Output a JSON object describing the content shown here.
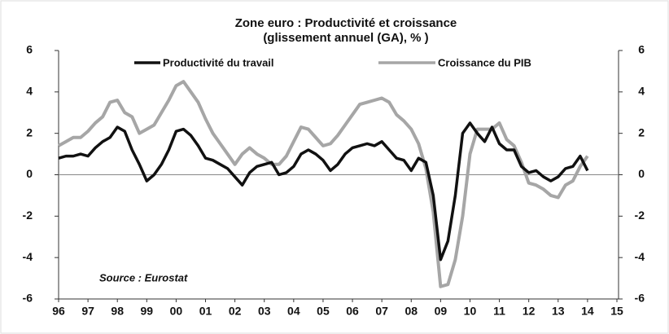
{
  "chart_data": {
    "type": "line",
    "title": "Zone euro : Productivité et croissance",
    "subtitle": "(glissement annuel (GA), % )",
    "annotation": "Source : Eurostat",
    "x": [
      1996,
      1996.25,
      1996.5,
      1996.75,
      1997,
      1997.25,
      1997.5,
      1997.75,
      1998,
      1998.25,
      1998.5,
      1998.75,
      1999,
      1999.25,
      1999.5,
      1999.75,
      2000,
      2000.25,
      2000.5,
      2000.75,
      2001,
      2001.25,
      2001.5,
      2001.75,
      2002,
      2002.25,
      2002.5,
      2002.75,
      2003,
      2003.25,
      2003.5,
      2003.75,
      2004,
      2004.25,
      2004.5,
      2004.75,
      2005,
      2005.25,
      2005.5,
      2005.75,
      2006,
      2006.25,
      2006.5,
      2006.75,
      2007,
      2007.25,
      2007.5,
      2007.75,
      2008,
      2008.25,
      2008.5,
      2008.75,
      2009,
      2009.25,
      2009.5,
      2009.75,
      2010,
      2010.25,
      2010.5,
      2010.75,
      2011,
      2011.25,
      2011.5,
      2011.75,
      2012,
      2012.25,
      2012.5,
      2012.75,
      2013,
      2013.25,
      2013.5,
      2013.75,
      2014
    ],
    "series": [
      {
        "name": "Productivité du travail",
        "color": "#111111",
        "values": [
          0.8,
          0.9,
          0.9,
          1.0,
          0.9,
          1.3,
          1.6,
          1.8,
          2.3,
          2.1,
          1.2,
          0.5,
          -0.3,
          0.0,
          0.5,
          1.2,
          2.1,
          2.2,
          1.9,
          1.4,
          0.8,
          0.7,
          0.5,
          0.3,
          -0.1,
          -0.5,
          0.1,
          0.4,
          0.5,
          0.6,
          0.0,
          0.1,
          0.4,
          1.0,
          1.2,
          1.0,
          0.7,
          0.2,
          0.5,
          1.0,
          1.3,
          1.4,
          1.5,
          1.4,
          1.6,
          1.2,
          0.8,
          0.7,
          0.2,
          0.8,
          0.6,
          -1.0,
          -4.1,
          -3.2,
          -1.0,
          2.0,
          2.5,
          2.0,
          1.6,
          2.3,
          1.5,
          1.2,
          1.2,
          0.4,
          0.1,
          0.2,
          -0.1,
          -0.3,
          -0.1,
          0.3,
          0.4,
          0.9,
          0.2
        ]
      },
      {
        "name": "Croissance du PIB",
        "color": "#a6a6a6",
        "values": [
          1.4,
          1.6,
          1.8,
          1.8,
          2.1,
          2.5,
          2.8,
          3.5,
          3.6,
          3.0,
          2.8,
          2.0,
          2.2,
          2.4,
          3.0,
          3.6,
          4.3,
          4.5,
          4.0,
          3.5,
          2.7,
          2.0,
          1.5,
          1.0,
          0.5,
          1.0,
          1.3,
          1.0,
          0.8,
          0.5,
          0.5,
          0.9,
          1.6,
          2.3,
          2.2,
          1.8,
          1.4,
          1.5,
          1.9,
          2.4,
          2.9,
          3.4,
          3.5,
          3.6,
          3.7,
          3.5,
          2.9,
          2.6,
          2.2,
          1.5,
          0.3,
          -1.8,
          -5.4,
          -5.3,
          -4.1,
          -2.0,
          1.0,
          2.2,
          2.2,
          2.2,
          2.5,
          1.7,
          1.4,
          0.6,
          -0.4,
          -0.5,
          -0.7,
          -1.0,
          -1.1,
          -0.5,
          -0.3,
          0.4,
          0.9
        ],
        "axis": "y2"
      }
    ],
    "xlim": [
      1996,
      2015
    ],
    "xticks": [
      {
        "value": 1996,
        "label": "96"
      },
      {
        "value": 1997,
        "label": "97"
      },
      {
        "value": 1998,
        "label": "98"
      },
      {
        "value": 1999,
        "label": "99"
      },
      {
        "value": 2000,
        "label": "00"
      },
      {
        "value": 2001,
        "label": "01"
      },
      {
        "value": 2002,
        "label": "02"
      },
      {
        "value": 2003,
        "label": "03"
      },
      {
        "value": 2004,
        "label": "04"
      },
      {
        "value": 2005,
        "label": "05"
      },
      {
        "value": 2006,
        "label": "06"
      },
      {
        "value": 2007,
        "label": "07"
      },
      {
        "value": 2008,
        "label": "08"
      },
      {
        "value": 2009,
        "label": "09"
      },
      {
        "value": 2010,
        "label": "10"
      },
      {
        "value": 2011,
        "label": "11"
      },
      {
        "value": 2012,
        "label": "12"
      },
      {
        "value": 2013,
        "label": "13"
      },
      {
        "value": 2014,
        "label": "14"
      },
      {
        "value": 2015,
        "label": "15"
      }
    ],
    "ylim": [
      -6,
      6
    ],
    "yticks": [
      6,
      4,
      2,
      0,
      -2,
      -4,
      -6
    ],
    "y2lim": [
      -6,
      6
    ],
    "y2ticks": [
      6,
      4,
      2,
      0,
      -2,
      -4,
      -6
    ]
  }
}
